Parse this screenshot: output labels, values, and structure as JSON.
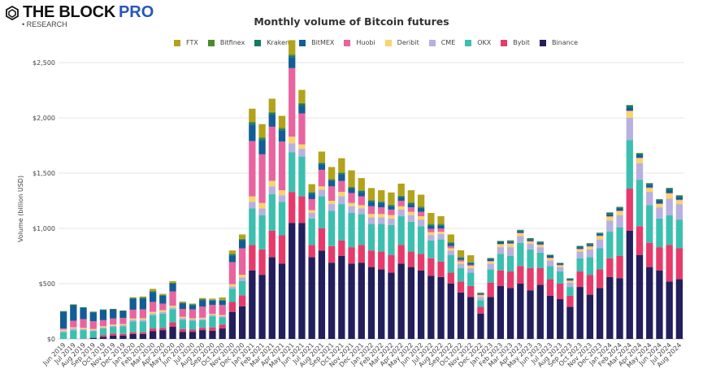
{
  "brand": {
    "name": "THE BLOCK",
    "pro": "PRO",
    "sub": "• RESEARCH"
  },
  "chart_data": {
    "type": "bar",
    "stacked": true,
    "title": "Monthly volume of Bitcoin futures",
    "xlabel": "",
    "ylabel": "Volume (billion USD)",
    "ylim": [
      0,
      2500
    ],
    "yticks": [
      0,
      500,
      1000,
      1500,
      2000,
      2500
    ],
    "ytick_labels": [
      "$0",
      "$500",
      "$1,000",
      "$1,500",
      "$2,000",
      "$2,500"
    ],
    "grid": true,
    "legend_position": "top",
    "categories": [
      "Jun 2019",
      "Jul 2019",
      "Aug 2019",
      "Sep 2019",
      "Oct 2019",
      "Nov 2019",
      "Dec 2019",
      "Jan 2020",
      "Feb 2020",
      "Mar 2020",
      "Apr 2020",
      "May 2020",
      "Jun 2020",
      "Jul 2020",
      "Aug 2020",
      "Sep 2020",
      "Oct 2020",
      "Nov 2020",
      "Dec 2020",
      "Jan 2021",
      "Feb 2021",
      "Mar 2021",
      "Apr 2021",
      "May 2021",
      "Jun 2021",
      "Jul 2021",
      "Aug 2021",
      "Sep 2021",
      "Oct 2021",
      "Nov 2021",
      "Dec 2021",
      "Jan 2022",
      "Feb 2022",
      "Mar 2022",
      "Apr 2022",
      "May 2022",
      "Jun 2022",
      "Jul 2022",
      "Aug 2022",
      "Sep 2022",
      "Oct 2022",
      "Nov 2022",
      "Dec 2022",
      "Jan 2023",
      "Feb 2023",
      "Mar 2023",
      "Apr 2023",
      "May 2023",
      "Jun 2023",
      "Jul 2023",
      "Aug 2023",
      "Sep 2023",
      "Oct 2023",
      "Nov 2023",
      "Dec 2023",
      "Jan 2024",
      "Feb 2024",
      "Mar 2024",
      "Apr 2024",
      "May 2024",
      "Jun 2024",
      "Jul 2024",
      "Aug 2024"
    ],
    "series": [
      {
        "name": "Binance",
        "color": "#231f5c",
        "values": [
          0,
          0,
          0,
          10,
          20,
          30,
          30,
          45,
          45,
          70,
          80,
          110,
          65,
          65,
          80,
          75,
          95,
          245,
          295,
          620,
          580,
          740,
          680,
          1050,
          1050,
          740,
          800,
          690,
          750,
          680,
          690,
          650,
          630,
          600,
          680,
          650,
          620,
          570,
          560,
          500,
          420,
          380,
          230,
          380,
          480,
          460,
          500,
          440,
          490,
          390,
          360,
          290,
          470,
          400,
          460,
          560,
          550,
          980,
          760,
          650,
          620,
          520,
          540
        ]
      },
      {
        "name": "Bybit",
        "color": "#e63b6a",
        "values": [
          0,
          0,
          0,
          0,
          15,
          20,
          15,
          15,
          15,
          25,
          20,
          40,
          25,
          20,
          20,
          30,
          35,
          90,
          100,
          230,
          230,
          240,
          260,
          280,
          240,
          110,
          200,
          150,
          140,
          150,
          160,
          150,
          160,
          160,
          170,
          140,
          150,
          160,
          140,
          100,
          100,
          100,
          60,
          130,
          140,
          150,
          160,
          200,
          150,
          150,
          140,
          100,
          140,
          180,
          170,
          170,
          200,
          380,
          260,
          220,
          210,
          330,
          280
        ]
      },
      {
        "name": "OKX",
        "color": "#3dbfb0",
        "values": [
          60,
          80,
          80,
          60,
          60,
          60,
          70,
          100,
          100,
          120,
          130,
          120,
          85,
          80,
          70,
          100,
          65,
          120,
          130,
          330,
          310,
          330,
          300,
          360,
          360,
          240,
          290,
          320,
          330,
          310,
          280,
          240,
          250,
          270,
          260,
          270,
          250,
          160,
          200,
          160,
          120,
          120,
          60,
          120,
          150,
          140,
          210,
          170,
          140,
          120,
          110,
          80,
          120,
          160,
          190,
          240,
          260,
          440,
          420,
          340,
          260,
          270,
          260
        ]
      },
      {
        "name": "CME",
        "color": "#b8b0e0",
        "values": [
          15,
          15,
          10,
          10,
          10,
          10,
          10,
          15,
          15,
          15,
          15,
          15,
          15,
          12,
          12,
          12,
          12,
          20,
          30,
          60,
          60,
          70,
          60,
          80,
          70,
          50,
          60,
          60,
          70,
          60,
          50,
          60,
          60,
          60,
          60,
          60,
          60,
          50,
          50,
          40,
          40,
          40,
          30,
          50,
          60,
          80,
          60,
          50,
          50,
          50,
          40,
          40,
          60,
          70,
          80,
          100,
          110,
          200,
          150,
          120,
          100,
          150,
          140
        ]
      },
      {
        "name": "Deribit",
        "color": "#f7d56a",
        "values": [
          10,
          10,
          10,
          10,
          10,
          10,
          10,
          10,
          12,
          15,
          15,
          15,
          10,
          10,
          10,
          10,
          10,
          20,
          25,
          50,
          50,
          50,
          45,
          60,
          40,
          25,
          30,
          30,
          40,
          30,
          30,
          30,
          30,
          30,
          30,
          30,
          30,
          25,
          20,
          20,
          20,
          20,
          15,
          20,
          25,
          30,
          25,
          20,
          20,
          20,
          15,
          15,
          20,
          25,
          30,
          35,
          35,
          60,
          45,
          35,
          30,
          45,
          35
        ]
      },
      {
        "name": "Huobi",
        "color": "#e864a0",
        "values": [
          10,
          60,
          80,
          70,
          55,
          55,
          55,
          80,
          80,
          90,
          60,
          130,
          70,
          80,
          100,
          80,
          90,
          200,
          240,
          500,
          440,
          490,
          440,
          620,
          280,
          100,
          150,
          130,
          100,
          90,
          80,
          70,
          60,
          50,
          50,
          40,
          40,
          30,
          30,
          20,
          15,
          10,
          5,
          5,
          5,
          5,
          5,
          5,
          5,
          5,
          5,
          5,
          5,
          5,
          5,
          5,
          5,
          5,
          5,
          5,
          5,
          5,
          5
        ]
      },
      {
        "name": "BitMEX",
        "color": "#135d96",
        "values": [
          150,
          140,
          100,
          80,
          90,
          80,
          60,
          100,
          100,
          90,
          70,
          70,
          50,
          40,
          60,
          40,
          40,
          60,
          70,
          150,
          130,
          110,
          100,
          100,
          70,
          50,
          50,
          50,
          60,
          40,
          40,
          40,
          40,
          30,
          30,
          30,
          30,
          30,
          25,
          20,
          15,
          15,
          10,
          15,
          15,
          15,
          15,
          15,
          15,
          15,
          10,
          10,
          15,
          15,
          15,
          20,
          20,
          30,
          25,
          25,
          25,
          30,
          25
        ]
      },
      {
        "name": "Kraken",
        "color": "#147a62",
        "values": [
          5,
          5,
          5,
          5,
          5,
          5,
          5,
          5,
          5,
          5,
          5,
          5,
          5,
          5,
          5,
          5,
          5,
          10,
          10,
          15,
          15,
          15,
          15,
          15,
          15,
          10,
          10,
          10,
          10,
          10,
          10,
          10,
          10,
          10,
          10,
          10,
          10,
          10,
          10,
          10,
          8,
          8,
          5,
          8,
          8,
          8,
          8,
          8,
          8,
          8,
          6,
          6,
          8,
          8,
          8,
          10,
          10,
          15,
          12,
          10,
          10,
          12,
          10
        ]
      },
      {
        "name": "Bitfinex",
        "color": "#4a8a30",
        "values": [
          2,
          2,
          2,
          2,
          2,
          2,
          2,
          2,
          2,
          3,
          3,
          3,
          3,
          3,
          3,
          3,
          3,
          5,
          5,
          8,
          8,
          8,
          8,
          8,
          8,
          5,
          5,
          5,
          5,
          5,
          5,
          5,
          5,
          5,
          5,
          5,
          5,
          5,
          5,
          5,
          4,
          4,
          3,
          4,
          4,
          4,
          4,
          4,
          4,
          4,
          3,
          3,
          4,
          4,
          4,
          5,
          5,
          6,
          5,
          5,
          5,
          5,
          5
        ]
      },
      {
        "name": "FTX",
        "color": "#b3a21c",
        "values": [
          0,
          0,
          0,
          0,
          0,
          0,
          0,
          5,
          10,
          20,
          10,
          15,
          10,
          5,
          10,
          10,
          20,
          30,
          40,
          120,
          120,
          120,
          110,
          130,
          120,
          70,
          100,
          110,
          130,
          150,
          110,
          110,
          100,
          110,
          110,
          110,
          110,
          100,
          70,
          70,
          60,
          60,
          0,
          0,
          0,
          0,
          0,
          0,
          0,
          0,
          0,
          0,
          0,
          0,
          0,
          0,
          0,
          0,
          0,
          0,
          0,
          0,
          0
        ]
      }
    ]
  }
}
